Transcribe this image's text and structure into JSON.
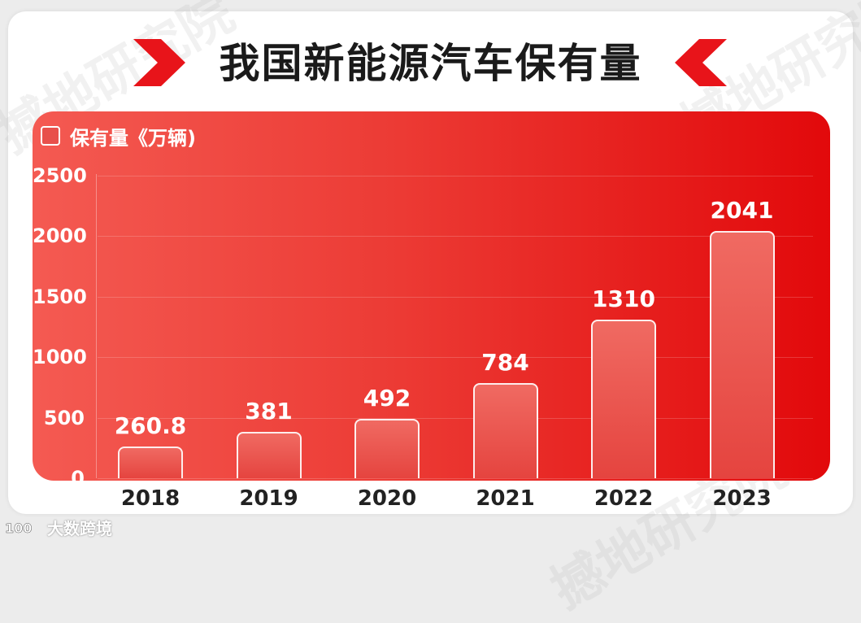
{
  "chart_data": {
    "type": "bar",
    "title": "我国新能源汽车保有量",
    "legend": "保有量《万辆)",
    "categories": [
      "2018",
      "2019",
      "2020",
      "2021",
      "2022",
      "2023"
    ],
    "values": [
      260.8,
      381,
      492,
      784,
      1310,
      2041
    ],
    "value_labels": [
      "260.8",
      "381",
      "492",
      "784",
      "1310",
      "2041"
    ],
    "yticks": [
      "0",
      "500",
      "1000",
      "1500",
      "2000",
      "2500"
    ],
    "ylim": [
      0,
      2500
    ],
    "xlabel": "",
    "ylabel": ""
  },
  "watermark_text": "撼地研究院",
  "footer": {
    "label": "大数跨境"
  },
  "colors": {
    "accent": "#e8141a",
    "panel_start": "#f45a52",
    "panel_end": "#e2090b"
  }
}
